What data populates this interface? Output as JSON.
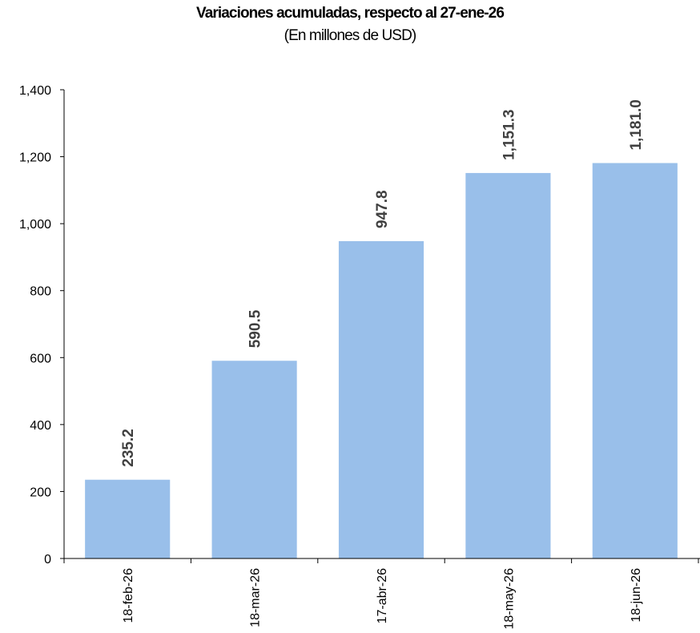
{
  "chart_data": {
    "type": "bar",
    "title": "Variaciones acumuladas, respecto al 27-ene-26",
    "subtitle": "(En millones de USD)",
    "categories": [
      "18-feb-26",
      "18-mar-26",
      "17-abr-26",
      "18-may-26",
      "18-jun-26"
    ],
    "values": [
      235.2,
      590.5,
      947.8,
      1151.3,
      1181.0
    ],
    "data_labels": [
      "235.2",
      "590.5",
      "947.8",
      "1,151.3",
      "1,181.0"
    ],
    "ylim": [
      0,
      1400
    ],
    "yticks": [
      0,
      200,
      400,
      600,
      800,
      1000,
      1200,
      1400
    ],
    "ytick_labels": [
      "0",
      "200",
      "400",
      "600",
      "800",
      "1,000",
      "1,200",
      "1,400"
    ],
    "xlabel": "",
    "ylabel": "",
    "grid": false,
    "legend": "none",
    "bar_color": "#99bfea",
    "axis_color": "#000000",
    "label_color": "#404040"
  }
}
